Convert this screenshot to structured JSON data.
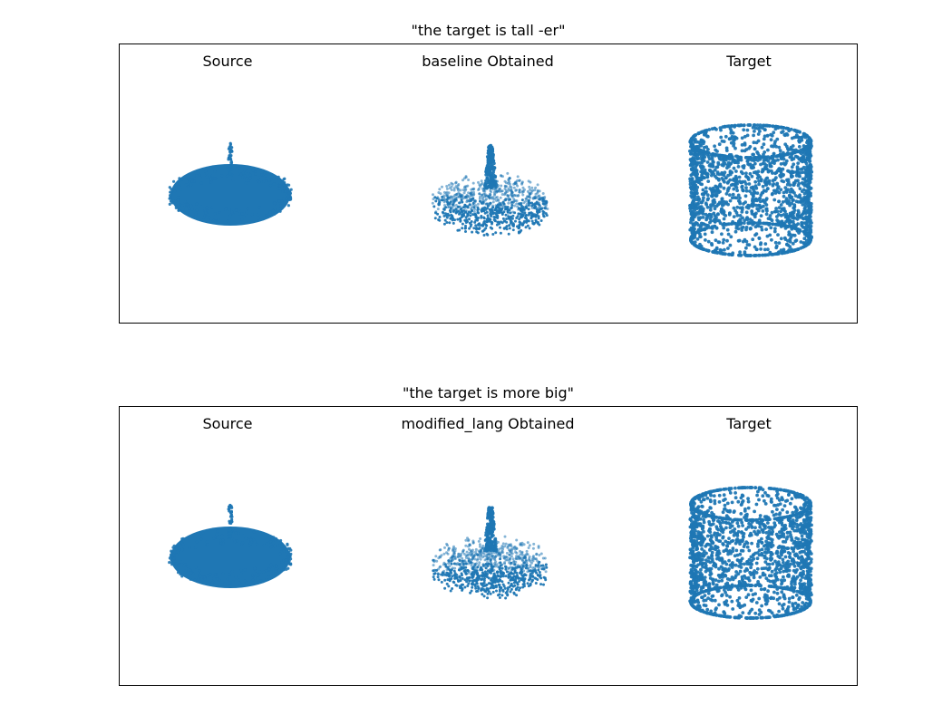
{
  "chart_data": [
    {
      "type": "scatter",
      "title": "\"the target is tall -er\"",
      "subplots": [
        {
          "title": "Source",
          "shape": "flat-disc-with-stem"
        },
        {
          "title": "baseline Obtained",
          "shape": "sparse-disc-with-stem"
        },
        {
          "title": "Target",
          "shape": "cylinder"
        }
      ]
    },
    {
      "type": "scatter",
      "title": "\"the target is more big\"",
      "subplots": [
        {
          "title": "Source",
          "shape": "flat-disc-with-stem"
        },
        {
          "title": "modified_lang Obtained",
          "shape": "sparse-disc-with-stem"
        },
        {
          "title": "Target",
          "shape": "cylinder"
        }
      ]
    }
  ],
  "colors": {
    "points": "#1f77b4"
  }
}
